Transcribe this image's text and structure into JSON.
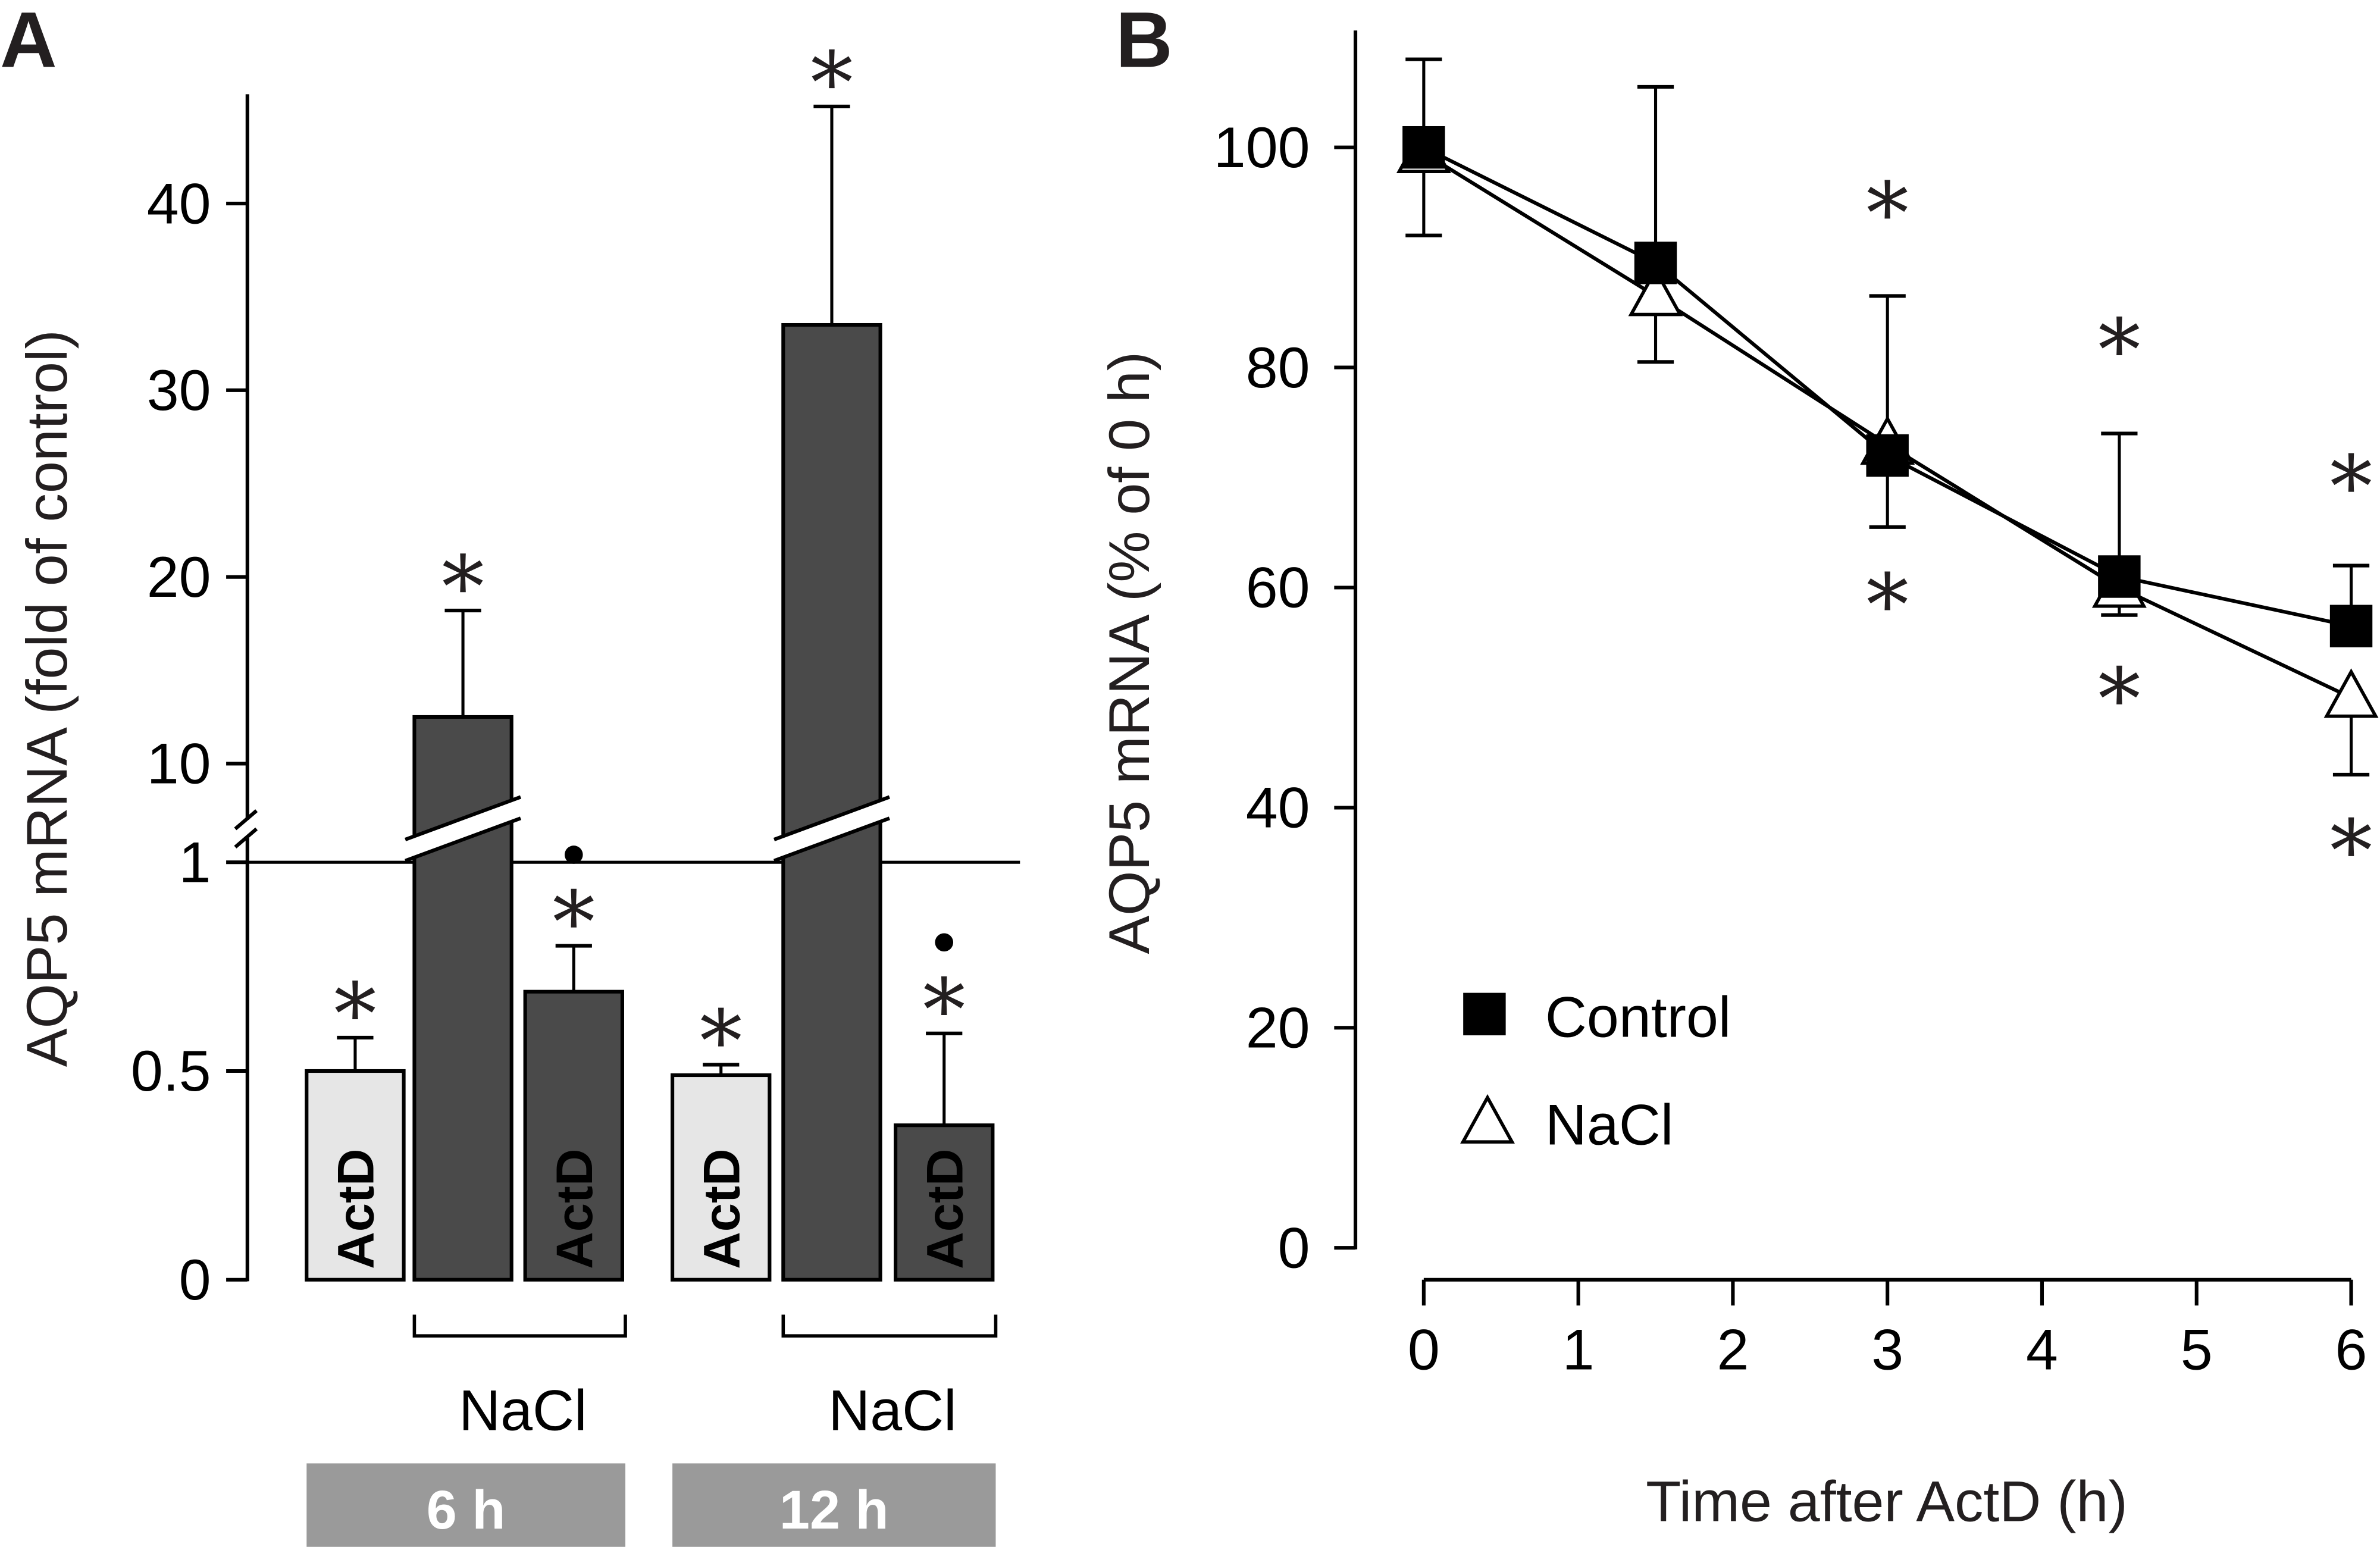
{
  "chart_data": [
    {
      "panel": "A",
      "type": "bar",
      "ylabel": "AQP5 mRNA (fold of control)",
      "y_axis": {
        "broken": true,
        "lower_segment": {
          "range": [
            0,
            1
          ],
          "ticks": [
            0,
            0.5,
            1
          ],
          "tick_labels": [
            "0",
            "0.5",
            "1"
          ]
        },
        "upper_segment": {
          "range": [
            8,
            45
          ],
          "ticks": [
            10,
            20,
            30,
            40
          ],
          "tick_labels": [
            "10",
            "20",
            "30",
            "40"
          ]
        }
      },
      "reference_line": 1,
      "bars": [
        {
          "group": "6 h",
          "treatment": "ActD",
          "nacl": false,
          "style": "light",
          "label": "ActD",
          "value": 0.5,
          "error_upper": 0.58,
          "marks": [
            "*"
          ]
        },
        {
          "group": "6 h",
          "treatment": "NaCl",
          "nacl": true,
          "style": "dark",
          "label": "",
          "value": 12.5,
          "error_upper": 18.2,
          "marks": [
            "*"
          ]
        },
        {
          "group": "6 h",
          "treatment": "NaCl + ActD",
          "nacl": true,
          "style": "dark",
          "label": "ActD",
          "value": 0.69,
          "error_upper": 0.8,
          "marks": [
            "*",
            "•"
          ]
        },
        {
          "group": "12 h",
          "treatment": "ActD",
          "nacl": false,
          "style": "light",
          "label": "ActD",
          "value": 0.49,
          "error_upper": 0.515,
          "marks": [
            "*"
          ]
        },
        {
          "group": "12 h",
          "treatment": "NaCl",
          "nacl": true,
          "style": "dark",
          "label": "",
          "value": 33.5,
          "error_upper": 45.2,
          "marks": [
            "*"
          ]
        },
        {
          "group": "12 h",
          "treatment": "NaCl + ActD",
          "nacl": true,
          "style": "dark",
          "label": "ActD",
          "value": 0.37,
          "error_upper": 0.59,
          "marks": [
            "*",
            "•"
          ]
        }
      ],
      "group_labels": [
        "NaCl",
        "NaCl"
      ],
      "time_labels": [
        "6 h",
        "12 h"
      ],
      "colors": {
        "light_bar": "#e6e6e6",
        "dark_bar": "#4a4a4a",
        "light_text": "#4a4a4a",
        "dark_text": "#ffffff",
        "time_box": "#9a9a9a"
      }
    },
    {
      "panel": "B",
      "type": "line",
      "xlabel": "Time after ActD (h)",
      "ylabel": "AQP5 mRNA (% of 0 h)",
      "xlim": [
        0,
        6
      ],
      "ylim": [
        0,
        110
      ],
      "x_ticks": [
        0,
        1,
        2,
        3,
        4,
        5,
        6
      ],
      "y_ticks": [
        0,
        20,
        40,
        60,
        80,
        100
      ],
      "grid": false,
      "legend_position": "bottom-left",
      "series": [
        {
          "name": "Control",
          "marker": "filled-square",
          "x": [
            0,
            1.5,
            3,
            4.5,
            6
          ],
          "y": [
            100,
            89.5,
            72,
            61,
            56.5
          ],
          "error_upper": [
            108,
            105.5,
            null,
            74,
            62
          ],
          "error_lower": [
            92,
            null,
            null,
            null,
            null
          ],
          "sig_above": [
            false,
            false,
            true,
            true,
            true
          ]
        },
        {
          "name": "NaCl",
          "marker": "open-triangle",
          "x": [
            0,
            1.5,
            3,
            4.5,
            6
          ],
          "y": [
            99.5,
            86.5,
            73,
            60,
            50
          ],
          "error_upper": [
            null,
            null,
            86.5,
            null,
            null
          ],
          "error_lower": [
            null,
            80.5,
            65.5,
            57.5,
            43
          ],
          "sig_below": [
            false,
            false,
            true,
            true,
            true
          ]
        }
      ]
    }
  ],
  "panel_labels": [
    "A",
    "B"
  ]
}
